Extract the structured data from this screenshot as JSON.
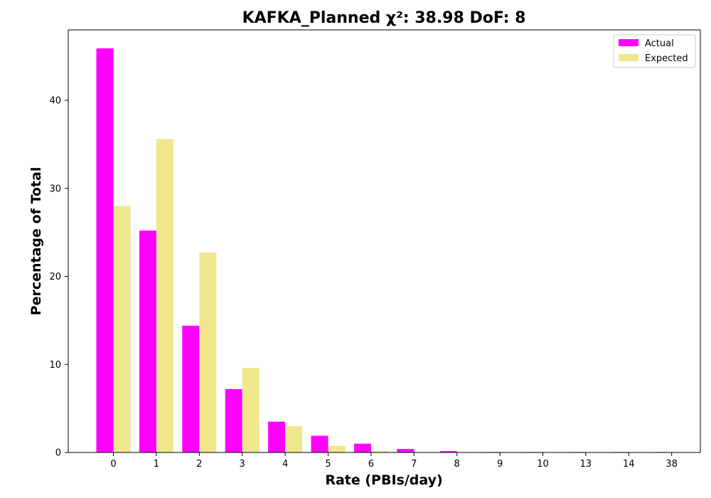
{
  "chart_data": {
    "type": "bar",
    "title": "KAFKA_Planned χ²: 38.98 DoF: 8",
    "xlabel": "Rate (PBIs/day)",
    "ylabel": "Percentage of Total",
    "categories": [
      "0",
      "1",
      "2",
      "3",
      "4",
      "5",
      "6",
      "7",
      "8",
      "9",
      "10",
      "13",
      "14",
      "38"
    ],
    "ylim": [
      0,
      48
    ],
    "yticks": [
      0,
      10,
      20,
      30,
      40
    ],
    "grid": false,
    "legend_position": "top-right",
    "series": [
      {
        "name": "Actual",
        "color": "#ff00ff",
        "values": [
          45.9,
          25.2,
          14.4,
          7.2,
          3.5,
          1.9,
          1.0,
          0.4,
          0.15,
          0.05,
          0.05,
          0.05,
          0.05,
          0.05
        ]
      },
      {
        "name": "Expected",
        "color": "#f0e68c",
        "values": [
          28.0,
          35.6,
          22.7,
          9.6,
          3.0,
          0.75,
          0.16,
          0.03,
          0.0,
          0.0,
          0.0,
          0.0,
          0.0,
          0.0
        ]
      }
    ]
  }
}
